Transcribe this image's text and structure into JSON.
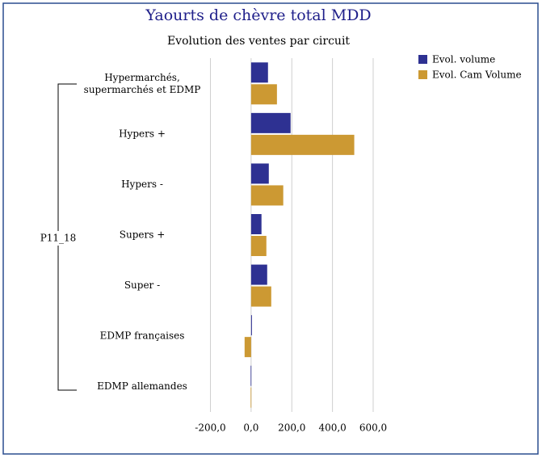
{
  "chart_data": {
    "type": "hbar",
    "title": "Yaourts de chèvre total MDD",
    "subtitle": "Evolution des ventes par circuit",
    "group_label": "P11_18",
    "categories": [
      "Hypermarchés,\nsupermarchés et EDMP",
      "Hypers +",
      "Hypers -",
      "Supers +",
      "Super -",
      "EDMP françaises",
      "EDMP allemandes"
    ],
    "series": [
      {
        "name": "Evol. volume",
        "color": "#2e3192",
        "values": [
          83,
          194,
          87,
          51,
          79,
          4,
          -2
        ]
      },
      {
        "name": "Evol. Cam Volume",
        "color": "#cc9933",
        "values": [
          127,
          507,
          158,
          75,
          99,
          -32,
          -2
        ]
      }
    ],
    "xlim": [
      -200,
      600
    ],
    "xticks": [
      {
        "value": -200,
        "label": "-200,0"
      },
      {
        "value": 0,
        "label": "0,0"
      },
      {
        "value": 200,
        "label": "200,0"
      },
      {
        "value": 400,
        "label": "400,0"
      },
      {
        "value": 600,
        "label": "600,0"
      }
    ],
    "grid": true,
    "legend": "top-right"
  }
}
